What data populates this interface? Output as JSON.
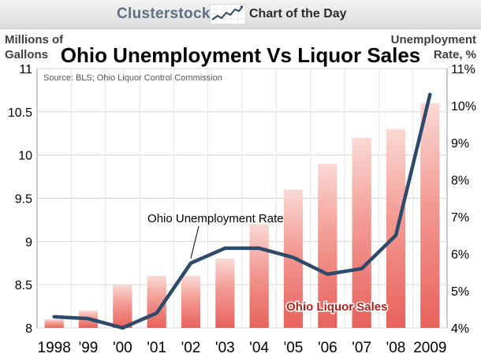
{
  "header": {
    "brand": "Clusterstock",
    "tagline": "Chart of the Day"
  },
  "chart_data": {
    "type": "bar",
    "title": "Ohio Unemployment Vs Liquor Sales",
    "source": "Source: BLS; Ohio Liquor Control Commission",
    "categories": [
      "1998",
      "'99",
      "'00",
      "'01",
      "'02",
      "'03",
      "'04",
      "'05",
      "'06",
      "'07",
      "'08",
      "2009"
    ],
    "left_axis": {
      "label": "Millions of Gallons",
      "label_lines": [
        "Millions of",
        "Gallons"
      ],
      "ylim": [
        8,
        11
      ],
      "ticks": [
        "8",
        "8.5",
        "9",
        "9.5",
        "10",
        "10.5",
        "11"
      ],
      "tick_values": [
        8,
        8.5,
        9,
        9.5,
        10,
        10.5,
        11
      ]
    },
    "right_axis": {
      "label": "Unemployment Rate, %",
      "label_lines": [
        "Unemployment",
        "Rate, %"
      ],
      "ylim": [
        4,
        11
      ],
      "ticks": [
        "4%",
        "5%",
        "6%",
        "7%",
        "8%",
        "9%",
        "10%",
        "11%"
      ],
      "tick_values": [
        4,
        5,
        6,
        7,
        8,
        9,
        10,
        11
      ]
    },
    "series": [
      {
        "name": "Ohio Liquor Sales",
        "type": "bar",
        "axis": "left",
        "color": "#e8625c",
        "values": [
          8.1,
          8.2,
          8.5,
          8.6,
          8.6,
          8.8,
          9.2,
          9.6,
          9.9,
          10.2,
          10.3,
          10.6
        ]
      },
      {
        "name": "Ohio Unemployment Rate",
        "type": "line",
        "axis": "right",
        "color": "#2e4a6b",
        "values": [
          4.3,
          4.25,
          4.0,
          4.4,
          5.75,
          6.15,
          6.15,
          5.9,
          5.45,
          5.6,
          6.5,
          10.3
        ]
      }
    ],
    "annotations": {
      "line_label": "Ohio Unemployment Rate",
      "bar_label": "Ohio Liquor Sales"
    },
    "grid": true
  }
}
